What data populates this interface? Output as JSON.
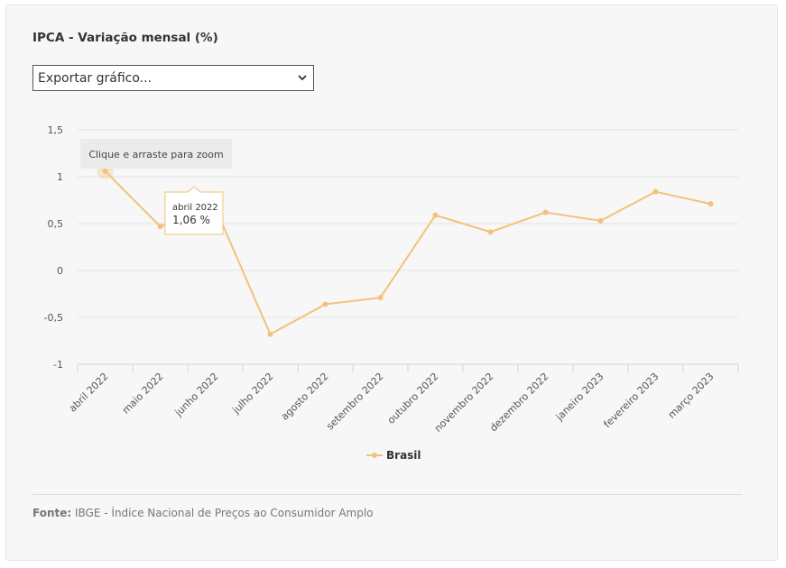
{
  "header": {
    "title": "IPCA - Variação mensal (%)",
    "export_select": {
      "value": "Exportar gráfico..."
    }
  },
  "chart_data": {
    "type": "line",
    "categories": [
      "abril 2022",
      "maio 2022",
      "junho 2022",
      "julho 2022",
      "agosto 2022",
      "setembro 2022",
      "outubro 2022",
      "novembro 2022",
      "dezembro 2022",
      "janeiro 2023",
      "fevereiro 2023",
      "março 2023"
    ],
    "series": [
      {
        "name": "Brasil",
        "color": "#f2c27a",
        "values": [
          1.06,
          0.47,
          0.67,
          -0.68,
          -0.36,
          -0.29,
          0.59,
          0.41,
          0.62,
          0.53,
          0.84,
          0.71
        ]
      }
    ],
    "y_ticks": [
      "1,5",
      "1",
      "0,5",
      "0",
      "-0,5",
      "-1"
    ],
    "y_tick_values": [
      1.5,
      1,
      0.5,
      0,
      -0.5,
      -1
    ],
    "ylim": [
      -1,
      1.5
    ],
    "grid": true,
    "legend_position": "bottom-center",
    "zoom_hint": "Clique e arraste para zoom",
    "tooltip": {
      "category": "abril 2022",
      "value": "1,06 %"
    }
  },
  "footer": {
    "source_label": "Fonte:",
    "source_text": "IBGE - Índice Nacional de Preços ao Consumidor Amplo"
  }
}
